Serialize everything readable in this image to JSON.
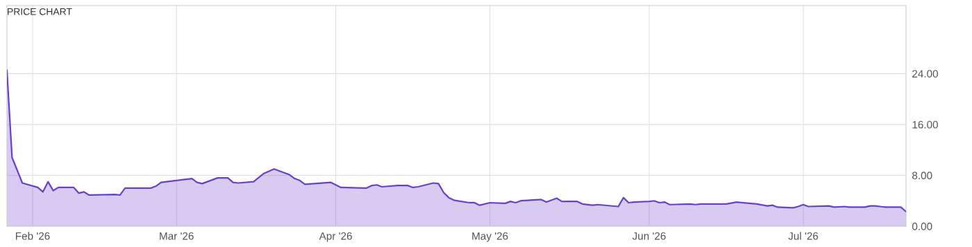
{
  "chart_data": {
    "type": "area",
    "title": "PRICE CHART",
    "x": [
      "2026-01-27",
      "2026-01-28",
      "2026-01-30",
      "2026-02-02",
      "2026-02-03",
      "2026-02-04",
      "2026-02-05",
      "2026-02-06",
      "2026-02-09",
      "2026-02-10",
      "2026-02-11",
      "2026-02-12",
      "2026-02-17",
      "2026-02-18",
      "2026-02-19",
      "2026-02-24",
      "2026-02-25",
      "2026-02-26",
      "2026-03-04",
      "2026-03-05",
      "2026-03-06",
      "2026-03-09",
      "2026-03-11",
      "2026-03-12",
      "2026-03-13",
      "2026-03-16",
      "2026-03-18",
      "2026-03-20",
      "2026-03-23",
      "2026-03-24",
      "2026-03-25",
      "2026-03-26",
      "2026-03-31",
      "2026-04-02",
      "2026-04-07",
      "2026-04-08",
      "2026-04-09",
      "2026-04-10",
      "2026-04-13",
      "2026-04-15",
      "2026-04-16",
      "2026-04-17",
      "2026-04-20",
      "2026-04-21",
      "2026-04-22",
      "2026-04-23",
      "2026-04-24",
      "2026-04-27",
      "2026-04-28",
      "2026-04-29",
      "2026-05-01",
      "2026-05-04",
      "2026-05-05",
      "2026-05-06",
      "2026-05-07",
      "2026-05-11",
      "2026-05-12",
      "2026-05-14",
      "2026-05-15",
      "2026-05-18",
      "2026-05-19",
      "2026-05-21",
      "2026-05-22",
      "2026-05-26",
      "2026-05-27",
      "2026-05-28",
      "2026-05-29",
      "2026-06-01",
      "2026-06-02",
      "2026-06-03",
      "2026-06-04",
      "2026-06-05",
      "2026-06-09",
      "2026-06-10",
      "2026-06-11",
      "2026-06-16",
      "2026-06-18",
      "2026-06-22",
      "2026-06-24",
      "2026-06-25",
      "2026-06-26",
      "2026-06-29",
      "2026-06-30",
      "2026-07-01",
      "2026-07-02",
      "2026-07-06",
      "2026-07-07",
      "2026-07-09",
      "2026-07-10",
      "2026-07-13",
      "2026-07-14",
      "2026-07-15",
      "2026-07-17",
      "2026-07-20",
      "2026-07-21"
    ],
    "series": [
      {
        "color": "#6a3fd0",
        "values": [
          24.5,
          10.8,
          6.8,
          6.1,
          5.4,
          7.0,
          5.6,
          6.1,
          6.1,
          5.2,
          5.4,
          4.9,
          5.0,
          4.9,
          6.0,
          6.0,
          6.3,
          6.9,
          7.5,
          6.9,
          6.7,
          7.6,
          7.6,
          6.9,
          6.8,
          7.0,
          8.3,
          9.0,
          8.1,
          7.5,
          7.2,
          6.6,
          6.9,
          6.1,
          6.0,
          6.4,
          6.5,
          6.2,
          6.4,
          6.4,
          6.1,
          6.2,
          6.8,
          6.7,
          5.3,
          4.5,
          4.1,
          3.7,
          3.7,
          3.3,
          3.7,
          3.6,
          3.9,
          3.7,
          4.0,
          4.2,
          3.8,
          4.4,
          3.9,
          3.9,
          3.5,
          3.3,
          3.4,
          3.1,
          4.5,
          3.7,
          3.8,
          3.9,
          4.0,
          3.7,
          3.8,
          3.4,
          3.5,
          3.4,
          3.5,
          3.5,
          3.8,
          3.5,
          3.2,
          3.3,
          3.0,
          2.9,
          3.1,
          3.4,
          3.1,
          3.2,
          3.0,
          3.1,
          3.0,
          3.0,
          3.2,
          3.2,
          3.0,
          3.0,
          2.3
        ]
      }
    ],
    "xlim": [
      "2026-01-27",
      "2026-07-21"
    ],
    "xticks": [
      {
        "value": "2026-02-01",
        "label": "Feb '26"
      },
      {
        "value": "2026-03-01",
        "label": "Mar '26"
      },
      {
        "value": "2026-04-01",
        "label": "Apr '26"
      },
      {
        "value": "2026-05-01",
        "label": "May '26"
      },
      {
        "value": "2026-06-01",
        "label": "Jun '26"
      },
      {
        "value": "2026-07-01",
        "label": "Jul '26"
      }
    ],
    "ylim": [
      0,
      34.7
    ],
    "yticks": [
      {
        "value": 0,
        "label": "0.00"
      },
      {
        "value": 8,
        "label": "8.00"
      },
      {
        "value": 16,
        "label": "16.00"
      },
      {
        "value": 24,
        "label": "24.00"
      }
    ],
    "grid": true,
    "legend": false,
    "line_style": "solid",
    "marker": "none"
  }
}
